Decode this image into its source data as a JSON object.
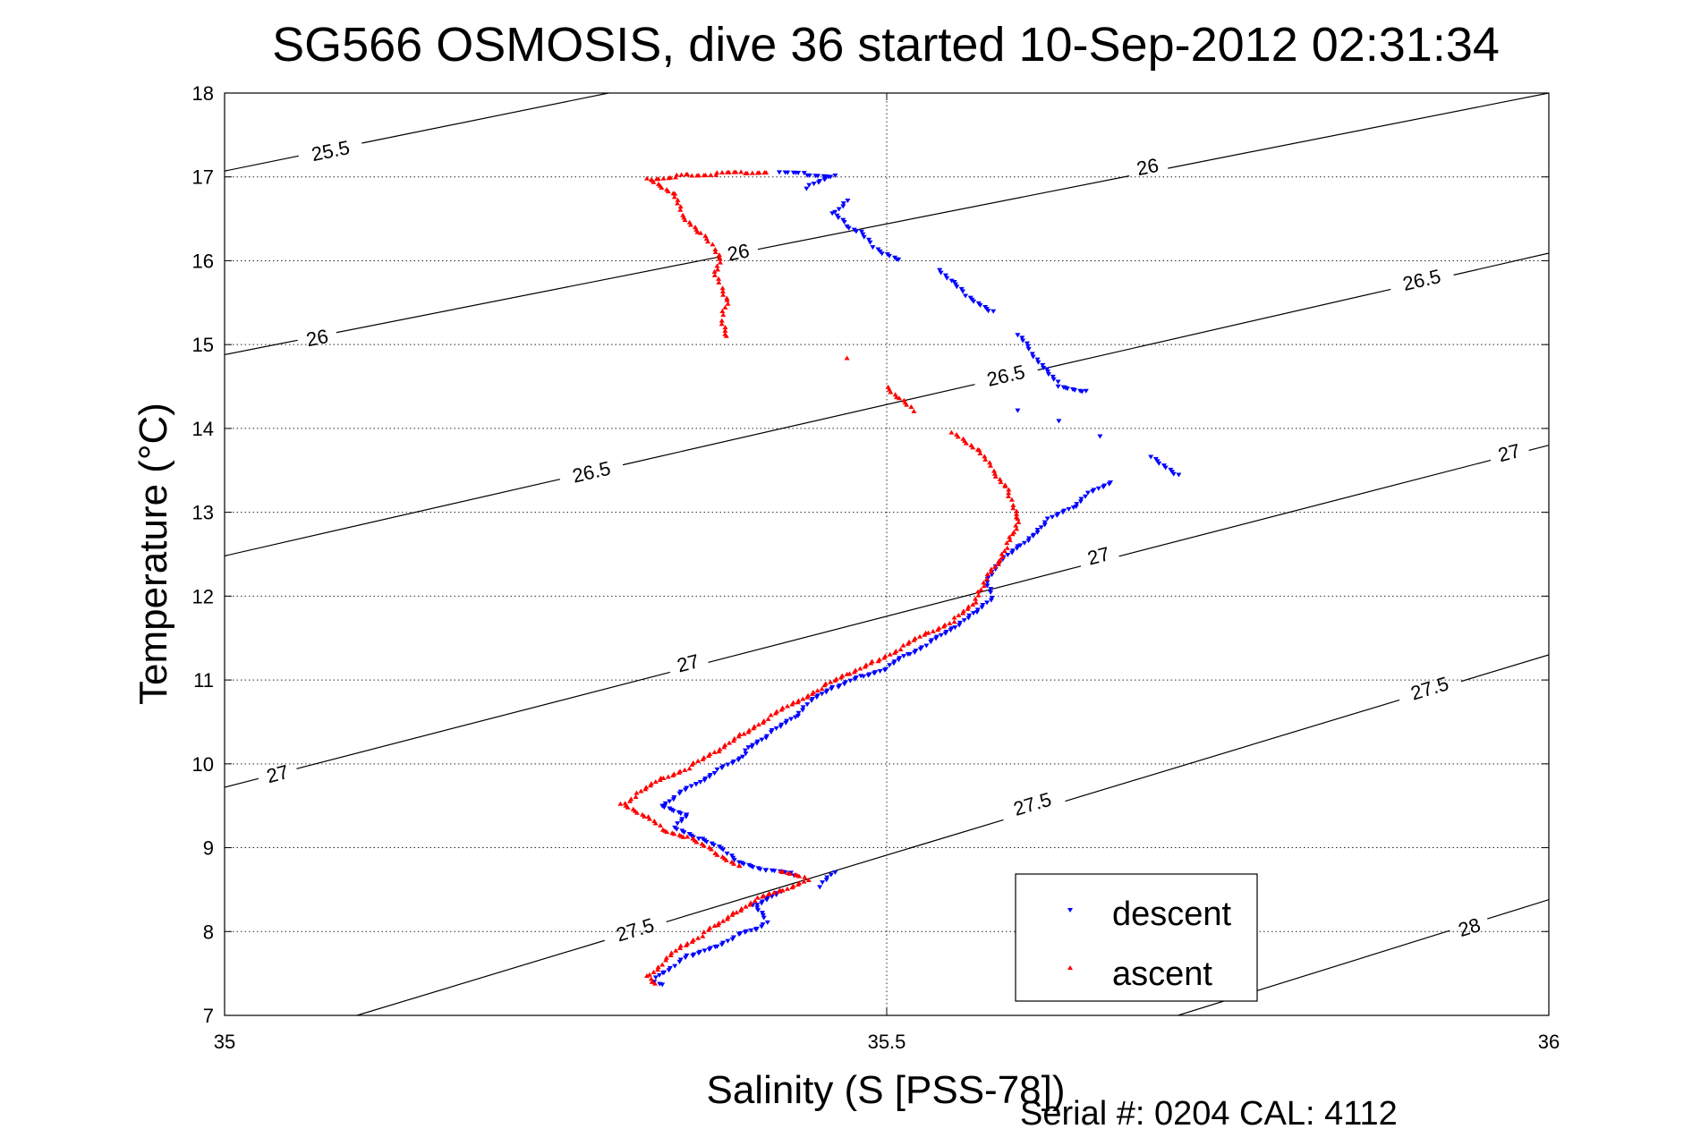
{
  "chart_data": {
    "type": "scatter",
    "title": "SG566 OSMOSIS, dive 36 started 10-Sep-2012 02:31:34",
    "xlabel": "Salinity (S [PSS-78])",
    "ylabel": "Temperature (°C)",
    "xlim": [
      35,
      36
    ],
    "ylim": [
      7,
      18
    ],
    "xticks": [
      35,
      35.5,
      36
    ],
    "xtick_labels": [
      "35",
      "35.5",
      "36"
    ],
    "yticks": [
      7,
      8,
      9,
      10,
      11,
      12,
      13,
      14,
      15,
      16,
      17,
      18
    ],
    "ytick_labels": [
      "7",
      "8",
      "9",
      "10",
      "11",
      "12",
      "13",
      "14",
      "15",
      "16",
      "17",
      "18"
    ],
    "grid": true,
    "legend_position": "bottom-right",
    "footer": "Serial #: 0204  CAL: 4112",
    "contours": [
      {
        "label": "25.5",
        "points": [
          [
            35.0,
            17.07
          ],
          [
            35.29,
            18.0
          ]
        ],
        "labels": [
          {
            "text": "25.5",
            "x": 35.08,
            "y": 17.31
          }
        ]
      },
      {
        "label": "26",
        "points": [
          [
            35.0,
            14.88
          ],
          [
            36.0,
            18.0
          ]
        ],
        "labels": [
          {
            "text": "26",
            "x": 35.07,
            "y": 15.08
          },
          {
            "text": "26",
            "x": 35.388,
            "y": 16.1
          },
          {
            "text": "26",
            "x": 35.697,
            "y": 17.12
          }
        ]
      },
      {
        "label": "26.5",
        "points": [
          [
            35.0,
            12.48
          ],
          [
            36.0,
            16.09
          ]
        ],
        "labels": [
          {
            "text": "26.5",
            "x": 35.277,
            "y": 13.48
          },
          {
            "text": "26.5",
            "x": 35.59,
            "y": 14.63
          },
          {
            "text": "26.5",
            "x": 35.904,
            "y": 15.77
          }
        ]
      },
      {
        "label": "27",
        "points": [
          [
            35.0,
            9.72
          ],
          [
            36.0,
            13.8
          ]
        ],
        "labels": [
          {
            "text": "27",
            "x": 35.04,
            "y": 9.88
          },
          {
            "text": "27",
            "x": 35.35,
            "y": 11.2
          },
          {
            "text": "27",
            "x": 35.66,
            "y": 12.48
          },
          {
            "text": "27",
            "x": 35.97,
            "y": 13.71
          }
        ]
      },
      {
        "label": "27.5",
        "points": [
          [
            35.1,
            7.0
          ],
          [
            36.0,
            11.3
          ]
        ],
        "labels": [
          {
            "text": "27.5",
            "x": 35.31,
            "y": 8.02
          },
          {
            "text": "27.5",
            "x": 35.61,
            "y": 9.52
          },
          {
            "text": "27.5",
            "x": 35.91,
            "y": 10.9
          }
        ]
      },
      {
        "label": "28",
        "points": [
          [
            35.72,
            7.0
          ],
          [
            36.0,
            8.38
          ]
        ],
        "labels": [
          {
            "text": "28",
            "x": 35.94,
            "y": 8.05
          }
        ]
      }
    ],
    "series": [
      {
        "name": "descent",
        "color": "#0000ff",
        "marker": "triangle-down",
        "points": [
          [
            35.42,
            17.04
          ],
          [
            35.44,
            17.03
          ],
          [
            35.46,
            17.01
          ],
          [
            35.44,
            16.88
          ],
          [
            35.47,
            16.72
          ],
          [
            35.46,
            16.55
          ],
          [
            35.47,
            16.42
          ],
          [
            35.48,
            16.34
          ],
          [
            35.49,
            16.18
          ],
          [
            35.5,
            16.08
          ],
          [
            35.51,
            16.0
          ],
          [
            35.54,
            15.9
          ],
          [
            35.55,
            15.74
          ],
          [
            35.56,
            15.6
          ],
          [
            35.58,
            15.4
          ],
          [
            35.6,
            15.1
          ],
          [
            35.61,
            14.9
          ],
          [
            35.62,
            14.7
          ],
          [
            35.63,
            14.52
          ],
          [
            35.65,
            14.45
          ],
          [
            35.6,
            14.2
          ],
          [
            35.63,
            14.1
          ],
          [
            35.66,
            13.9
          ],
          [
            35.7,
            13.68
          ],
          [
            35.72,
            13.45
          ],
          [
            35.67,
            13.34
          ],
          [
            35.65,
            13.2
          ],
          [
            35.64,
            13.05
          ],
          [
            35.62,
            12.9
          ],
          [
            35.61,
            12.72
          ],
          [
            35.6,
            12.58
          ],
          [
            35.585,
            12.4
          ],
          [
            35.575,
            12.2
          ],
          [
            35.58,
            12.0
          ],
          [
            35.565,
            11.8
          ],
          [
            35.55,
            11.6
          ],
          [
            35.53,
            11.42
          ],
          [
            35.515,
            11.3
          ],
          [
            35.5,
            11.15
          ],
          [
            35.48,
            11.05
          ],
          [
            35.46,
            10.9
          ],
          [
            35.44,
            10.72
          ],
          [
            35.43,
            10.55
          ],
          [
            35.41,
            10.35
          ],
          [
            35.395,
            10.2
          ],
          [
            35.39,
            10.05
          ],
          [
            35.37,
            9.9
          ],
          [
            35.355,
            9.75
          ],
          [
            35.34,
            9.62
          ],
          [
            35.33,
            9.5
          ],
          [
            35.35,
            9.38
          ],
          [
            35.34,
            9.25
          ],
          [
            35.36,
            9.1
          ],
          [
            35.38,
            8.95
          ],
          [
            35.39,
            8.82
          ],
          [
            35.41,
            8.72
          ],
          [
            35.43,
            8.68
          ],
          [
            35.46,
            8.7
          ],
          [
            35.45,
            8.55
          ],
          [
            35.42,
            8.48
          ],
          [
            35.4,
            8.3
          ],
          [
            35.41,
            8.12
          ],
          [
            35.4,
            8.02
          ],
          [
            35.385,
            7.95
          ],
          [
            35.37,
            7.82
          ],
          [
            35.35,
            7.7
          ],
          [
            35.34,
            7.6
          ],
          [
            35.33,
            7.5
          ],
          [
            35.325,
            7.42
          ],
          [
            35.33,
            7.37
          ]
        ]
      },
      {
        "name": "ascent",
        "color": "#ff0000",
        "marker": "triangle-up",
        "points": [
          [
            35.41,
            17.05
          ],
          [
            35.39,
            17.04
          ],
          [
            35.37,
            17.03
          ],
          [
            35.35,
            17.02
          ],
          [
            35.34,
            17.01
          ],
          [
            35.32,
            16.98
          ],
          [
            35.34,
            16.78
          ],
          [
            35.345,
            16.55
          ],
          [
            35.36,
            16.32
          ],
          [
            35.37,
            16.15
          ],
          [
            35.375,
            16.02
          ],
          [
            35.37,
            15.85
          ],
          [
            35.375,
            15.68
          ],
          [
            35.38,
            15.52
          ],
          [
            35.375,
            15.3
          ],
          [
            35.38,
            15.1
          ],
          [
            35.47,
            14.82
          ],
          [
            35.5,
            14.5
          ],
          [
            35.51,
            14.35
          ],
          [
            35.52,
            14.22
          ],
          [
            35.55,
            13.95
          ],
          [
            35.57,
            13.72
          ],
          [
            35.58,
            13.5
          ],
          [
            35.59,
            13.3
          ],
          [
            35.595,
            13.1
          ],
          [
            35.6,
            12.92
          ],
          [
            35.595,
            12.72
          ],
          [
            35.59,
            12.58
          ],
          [
            35.585,
            12.4
          ],
          [
            35.575,
            12.22
          ],
          [
            35.57,
            12.05
          ],
          [
            35.565,
            11.88
          ],
          [
            35.55,
            11.7
          ],
          [
            35.53,
            11.55
          ],
          [
            35.51,
            11.38
          ],
          [
            35.49,
            11.22
          ],
          [
            35.47,
            11.05
          ],
          [
            35.45,
            10.9
          ],
          [
            35.43,
            10.72
          ],
          [
            35.41,
            10.55
          ],
          [
            35.39,
            10.35
          ],
          [
            35.37,
            10.12
          ],
          [
            35.35,
            9.95
          ],
          [
            35.33,
            9.82
          ],
          [
            35.31,
            9.62
          ],
          [
            35.3,
            9.52
          ],
          [
            35.32,
            9.35
          ],
          [
            35.33,
            9.22
          ],
          [
            35.35,
            9.12
          ],
          [
            35.37,
            8.95
          ],
          [
            35.39,
            8.78
          ],
          [
            35.42,
            8.7
          ],
          [
            35.44,
            8.62
          ],
          [
            35.42,
            8.48
          ],
          [
            35.4,
            8.38
          ],
          [
            35.385,
            8.22
          ],
          [
            35.37,
            8.05
          ],
          [
            35.36,
            7.95
          ],
          [
            35.345,
            7.82
          ],
          [
            35.33,
            7.62
          ],
          [
            35.32,
            7.47
          ],
          [
            35.325,
            7.36
          ]
        ]
      }
    ]
  }
}
